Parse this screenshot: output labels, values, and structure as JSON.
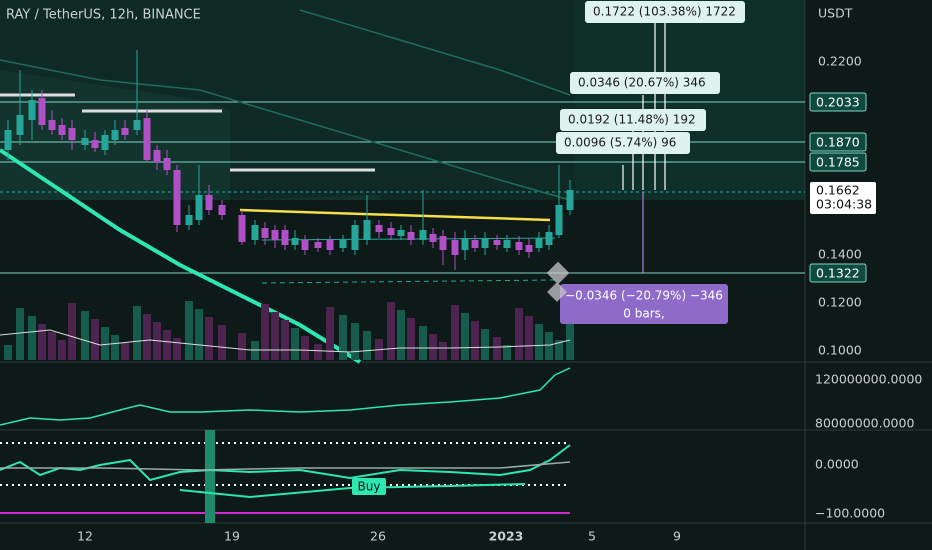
{
  "header": {
    "title": "RAY / TetherUS, 12h, BINANCE"
  },
  "price_axis": {
    "currency": "USDT",
    "ticks": [
      "0.2200",
      "0.1400",
      "0.1200",
      "0.1000"
    ],
    "labels": [
      "0.2033",
      "0.1870",
      "0.1785",
      "0.1322"
    ],
    "last_price": "0.1662",
    "countdown": "03:04:38"
  },
  "volume_axis": {
    "ticks": [
      "120000000.0000",
      "80000000.0000"
    ]
  },
  "oscillator_axis": {
    "ticks": [
      "0.0000",
      "−100.0000"
    ]
  },
  "time_axis": {
    "ticks": [
      "12",
      "19",
      "26",
      "2023",
      "5",
      "9"
    ]
  },
  "measurements": [
    "0.1722 (103.38%) 1722",
    "0.0346 (20.67%) 346",
    "0.0192 (11.48%) 192",
    "0.0096 (5.74%) 96"
  ],
  "down_measurement": {
    "line1": "−0.0346 (−20.79%) −346",
    "line2": "0 bars,"
  },
  "signal": "Buy"
}
